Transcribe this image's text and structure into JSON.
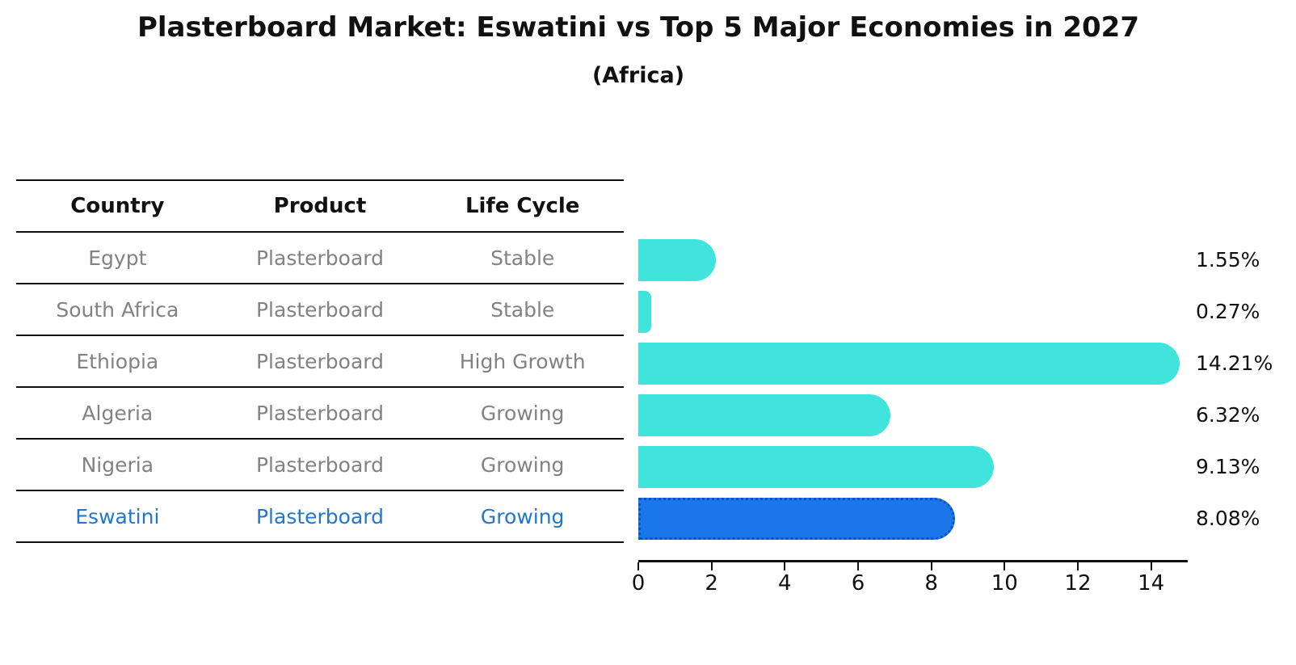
{
  "title": "Plasterboard Market: Eswatini vs Top 5 Major Economies in 2027",
  "subtitle": "(Africa)",
  "colors": {
    "bar_default": "#40e4dc",
    "bar_highlight": "#1b76e8",
    "bar_highlight_border": "#0a52c8",
    "highlight_text": "#2277cc",
    "row_text": "#828282",
    "header_text": "#111111",
    "axis": "#111111"
  },
  "table": {
    "headers": [
      "Country",
      "Product",
      "Life Cycle"
    ],
    "rows": [
      {
        "country": "Egypt",
        "product": "Plasterboard",
        "life_cycle": "Stable",
        "highlight": false
      },
      {
        "country": "South Africa",
        "product": "Plasterboard",
        "life_cycle": "Stable",
        "highlight": false
      },
      {
        "country": "Ethiopia",
        "product": "Plasterboard",
        "life_cycle": "High Growth",
        "highlight": false
      },
      {
        "country": "Algeria",
        "product": "Plasterboard",
        "life_cycle": "Growing",
        "highlight": false
      },
      {
        "country": "Nigeria",
        "product": "Plasterboard",
        "life_cycle": "Growing",
        "highlight": true
      }
    ],
    "highlight_row": {
      "country": "Eswatini",
      "product": "Plasterboard",
      "life_cycle": "Growing",
      "highlight": true
    }
  },
  "chart_data": {
    "type": "bar",
    "orientation": "horizontal",
    "categories": [
      "Egypt",
      "South Africa",
      "Ethiopia",
      "Algeria",
      "Nigeria",
      "Eswatini"
    ],
    "values": [
      1.55,
      0.27,
      14.21,
      6.32,
      9.13,
      8.08
    ],
    "value_labels": [
      "1.55%",
      "0.27%",
      "14.21%",
      "6.32%",
      "9.13%",
      "8.08%"
    ],
    "highlighted_category": "Eswatini",
    "title": "Plasterboard Market: Eswatini vs Top 5 Major Economies in 2027",
    "subtitle": "(Africa)",
    "xlabel": "",
    "ylabel": "",
    "xlim": [
      0,
      15
    ],
    "xticks": [
      0,
      2,
      4,
      6,
      8,
      10,
      12,
      14
    ],
    "grid": false,
    "legend": false,
    "value_label_position": "right-of-plot"
  }
}
